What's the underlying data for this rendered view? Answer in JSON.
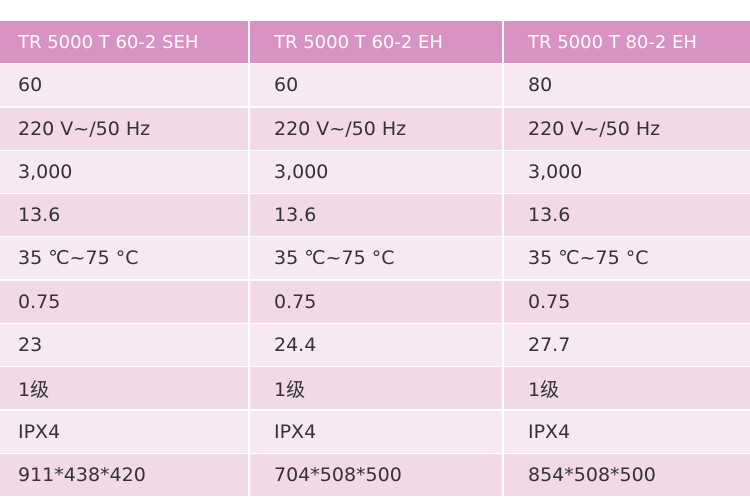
{
  "table": {
    "header": [
      "TR 5000 T 60-2 SEH",
      "TR 5000 T 60-2 EH",
      "TR 5000 T 80-2 EH"
    ],
    "rows": [
      [
        "60",
        "60",
        "80"
      ],
      [
        "220 V~/50 Hz",
        "220 V~/50 Hz",
        "220 V~/50 Hz"
      ],
      [
        "3,000",
        "3,000",
        "3,000"
      ],
      [
        "13.6",
        "13.6",
        "13.6"
      ],
      [
        "35 ℃~75 °C",
        "35 ℃~75 °C",
        "35 ℃~75 °C"
      ],
      [
        "0.75",
        "0.75",
        "0.75"
      ],
      [
        "23",
        "24.4",
        "27.7"
      ],
      [
        "1级",
        "1级",
        "1级"
      ],
      [
        "IPX4",
        "IPX4",
        "IPX4"
      ],
      [
        "911*438*420",
        "704*508*500",
        "854*508*500"
      ]
    ]
  }
}
